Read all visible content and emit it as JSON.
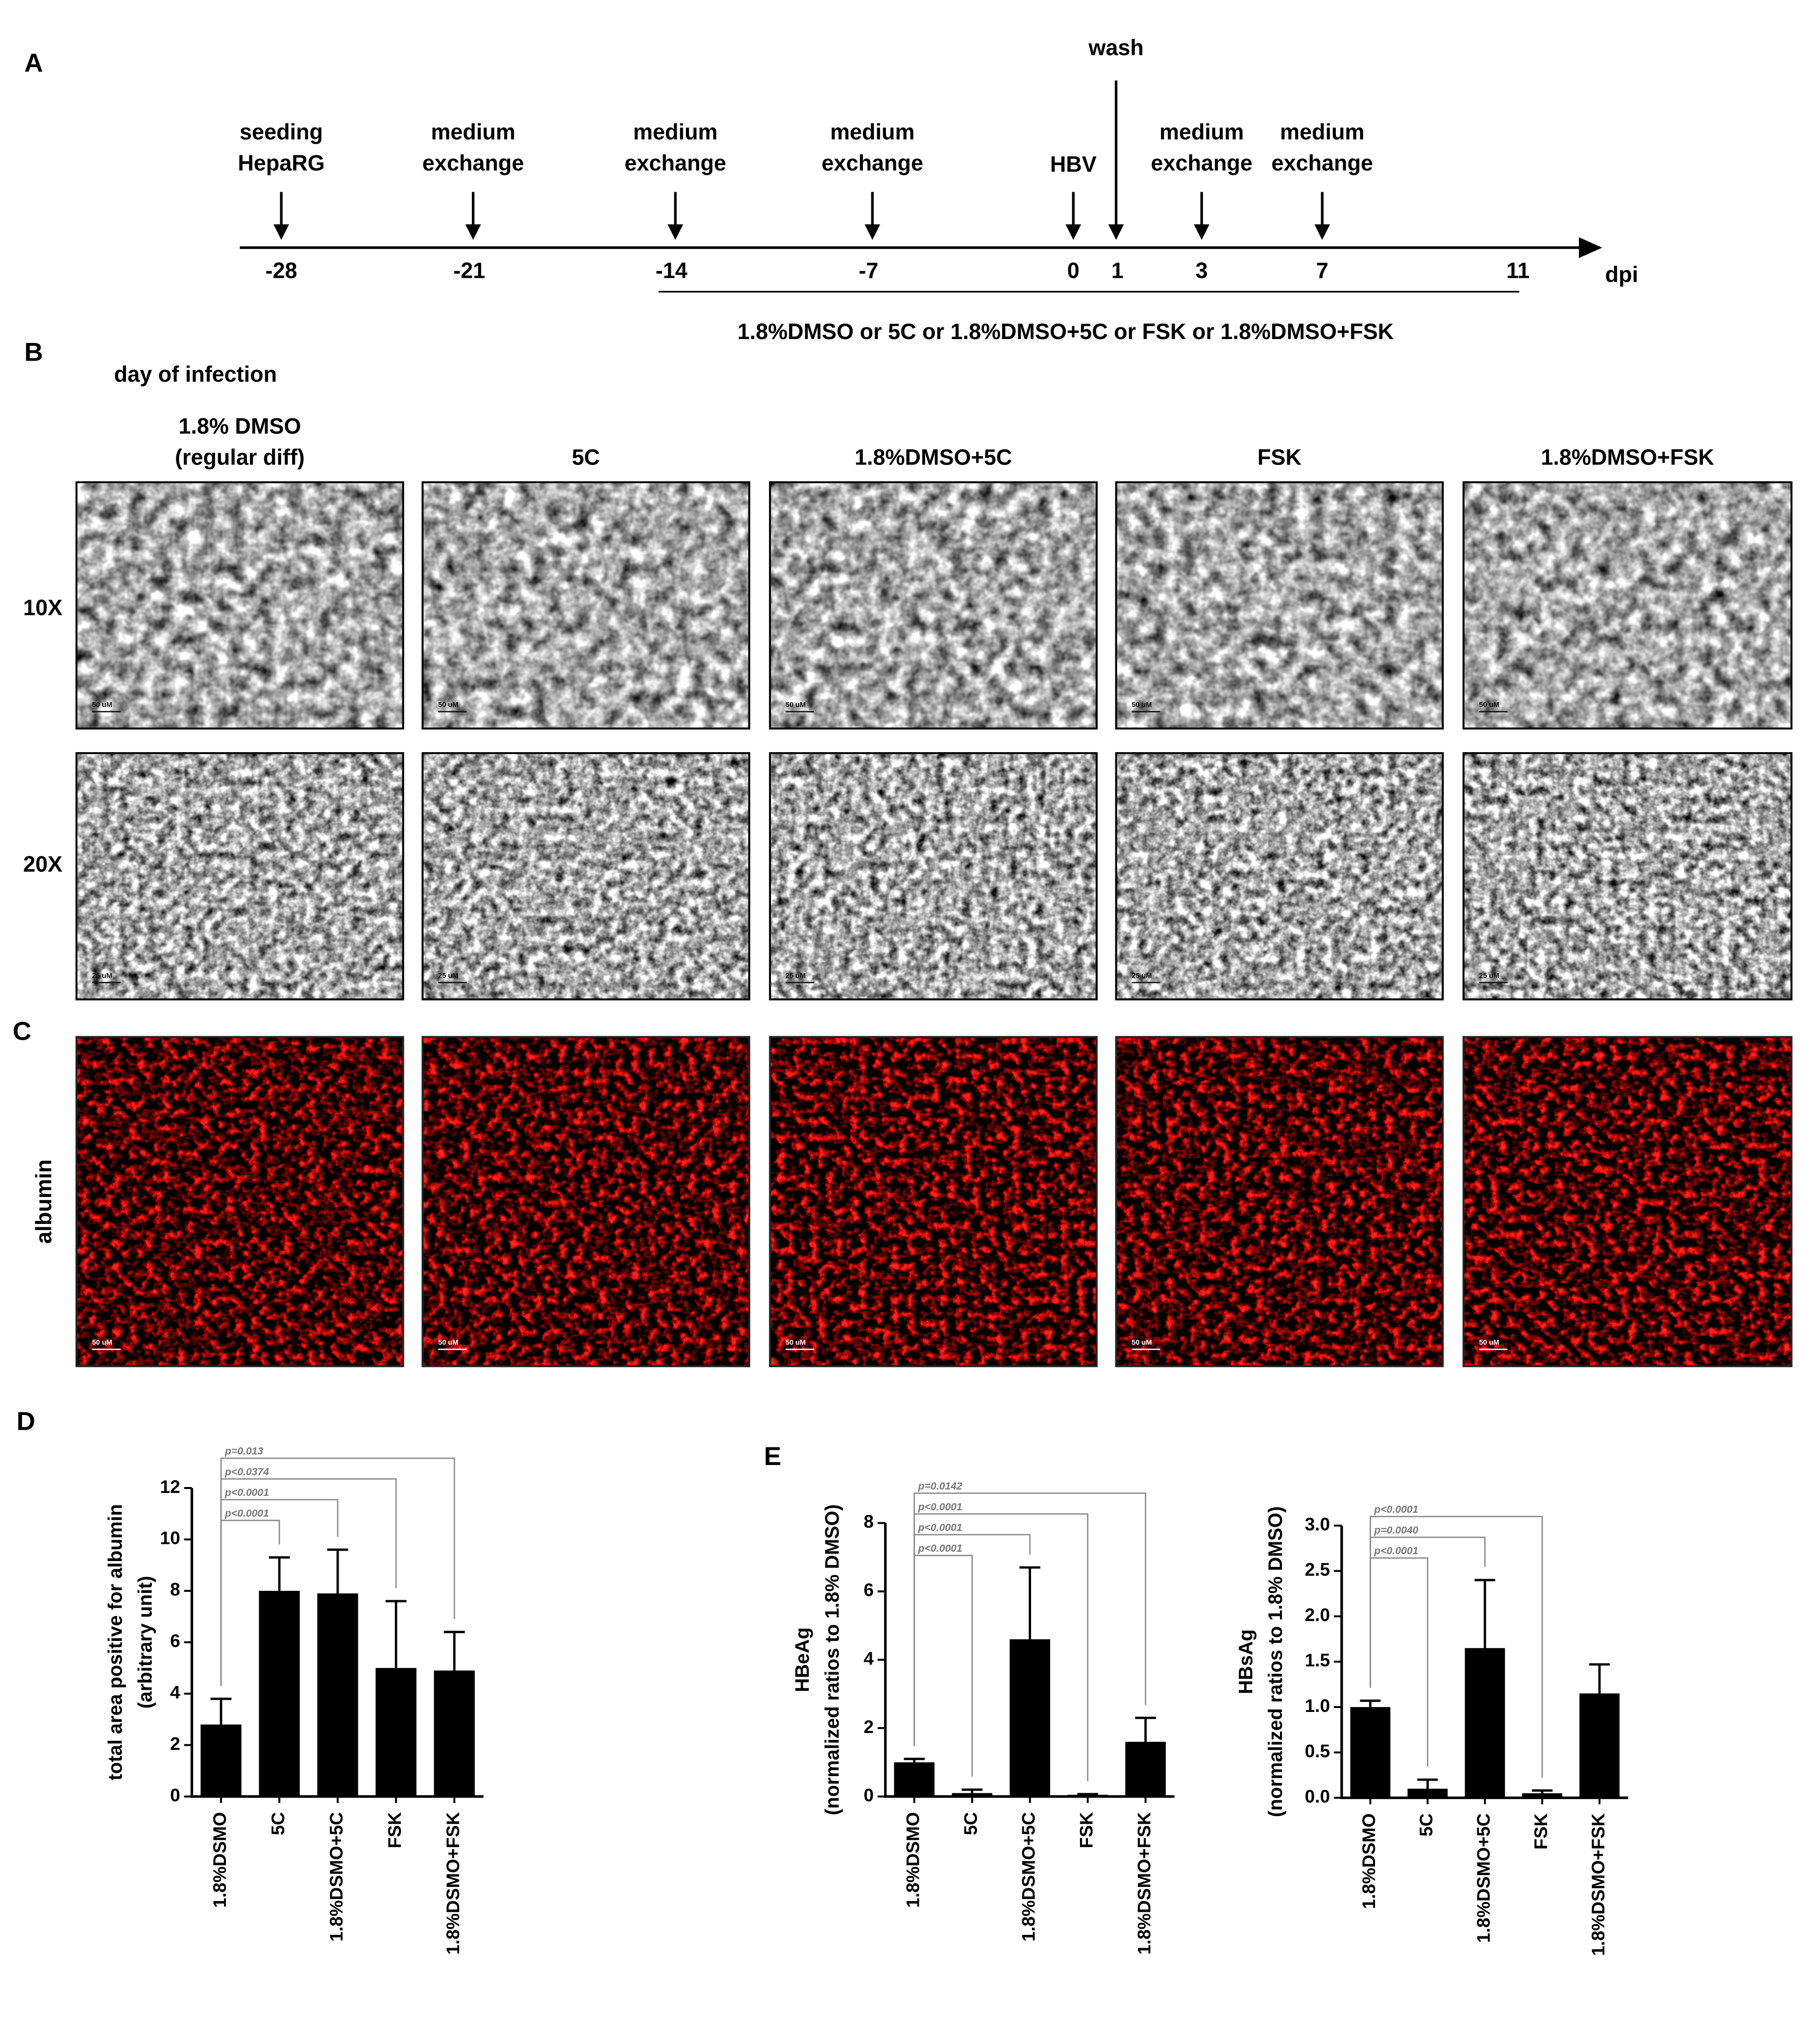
{
  "panel_labels": [
    "A",
    "B",
    "C",
    "D",
    "E"
  ],
  "timeline": {
    "events": [
      {
        "label": [
          "seeding",
          "HepaRG"
        ]
      },
      {
        "label": [
          "medium",
          "exchange"
        ]
      },
      {
        "label": [
          "medium",
          "exchange"
        ]
      },
      {
        "label": [
          "medium",
          "exchange"
        ]
      },
      {
        "label": [
          "HBV"
        ]
      },
      {
        "label": [
          "wash"
        ]
      },
      {
        "label": [
          "medium",
          "exchange"
        ]
      },
      {
        "label": [
          "medium",
          "exchange"
        ]
      }
    ],
    "days": [
      -28,
      -21,
      -14,
      -7,
      0,
      1,
      3,
      7,
      11
    ],
    "unit": "dpi",
    "treatment": "1.8%DMSO or 5C or 1.8%DMSO+5C or FSK or 1.8%DMSO+FSK"
  },
  "micrographs": {
    "title": "day of infection",
    "columns": [
      [
        "1.8% DMSO",
        "(regular diff)"
      ],
      [
        "5C"
      ],
      [
        "1.8%DMSO+5C"
      ],
      [
        "FSK"
      ],
      [
        "1.8%DMSO+FSK"
      ]
    ],
    "rows": [
      {
        "label": "10X",
        "scale_bar": "50 uM"
      },
      {
        "label": "20X",
        "scale_bar": "25 uM"
      },
      {
        "label": "albumin",
        "scale_bar": "50 uM"
      }
    ]
  },
  "chart_data": [
    {
      "type": "bar",
      "ylabel": [
        "total area positive for albumin",
        "(arbitrary unit)"
      ],
      "categories": [
        "1.8%DSMO",
        "5C",
        "1.8%DSMO+5C",
        "FSK",
        "1.8%DSMO+FSK"
      ],
      "values": [
        2.8,
        8.0,
        7.9,
        5.0,
        4.9
      ],
      "errors": [
        1.0,
        1.3,
        1.7,
        2.6,
        1.5
      ],
      "color": "#000000",
      "ylim": [
        0,
        12
      ],
      "yticks": [
        0,
        2,
        4,
        6,
        8,
        10,
        12
      ],
      "annotations": [
        "p<0.0001",
        "p<0.0001",
        "p<0.0374",
        "p=0.013"
      ]
    },
    {
      "type": "bar",
      "ylabel": [
        "HBeAg",
        "(normalized ratios to 1.8% DMSO)"
      ],
      "categories": [
        "1.8%DSMO",
        "5C",
        "1.8%DSMO+5C",
        "FSK",
        "1.8%DSMO+FSK"
      ],
      "values": [
        1.0,
        0.1,
        4.6,
        0.05,
        1.6
      ],
      "errors": [
        0.1,
        0.1,
        2.1,
        0.02,
        0.7
      ],
      "color": "#000000",
      "ylim": [
        0,
        8
      ],
      "yticks": [
        0,
        2,
        4,
        6,
        8
      ],
      "annotations": [
        "p<0.0001",
        "p<0.0001",
        "p<0.0001",
        "p=0.0142"
      ]
    },
    {
      "type": "bar",
      "ylabel": [
        "HBsAg",
        "(normalized ratios to 1.8% DMSO)"
      ],
      "categories": [
        "1.8%DSMO",
        "5C",
        "1.8%DSMO+5C",
        "FSK",
        "1.8%DSMO+FSK"
      ],
      "values": [
        1.0,
        0.1,
        1.65,
        0.05,
        1.15
      ],
      "errors": [
        0.07,
        0.1,
        0.75,
        0.03,
        0.32
      ],
      "color": "#000000",
      "ylim": [
        0,
        3
      ],
      "yticks": [
        {
          "value": 0,
          "label": "0.0"
        },
        0.5,
        {
          "value": 1,
          "label": "1.0"
        },
        1.5,
        {
          "value": 2,
          "label": "2.0"
        },
        2.5,
        {
          "value": 3,
          "label": "3.0"
        }
      ],
      "annotations": [
        "p<0.0001",
        "p=0.0040",
        "p<0.0001"
      ]
    }
  ]
}
